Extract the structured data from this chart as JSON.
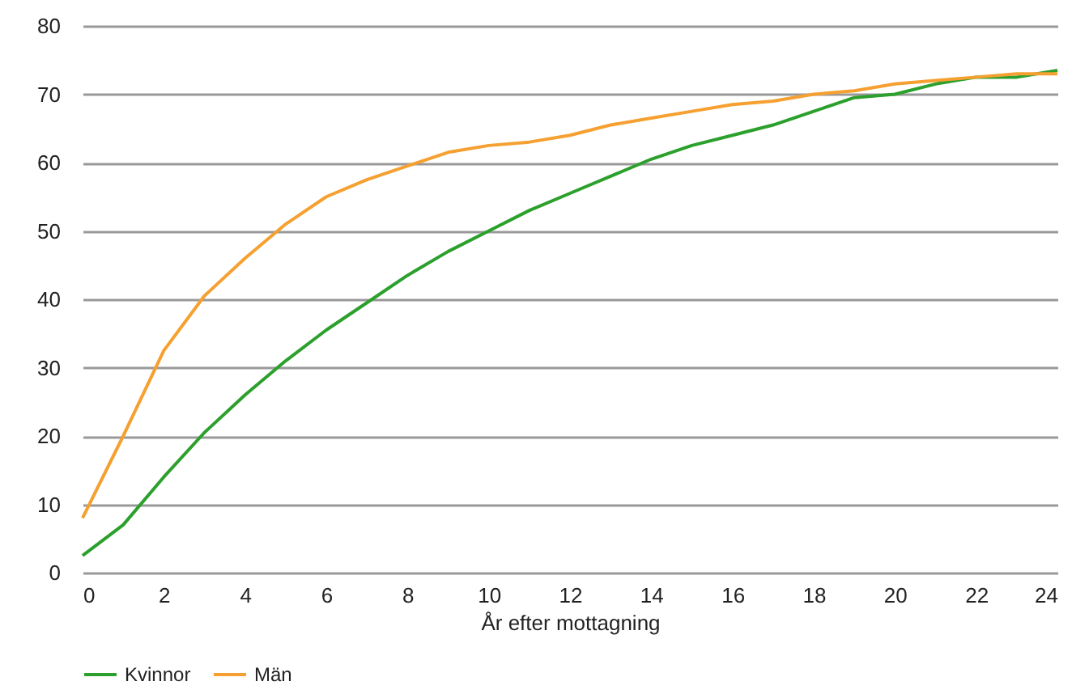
{
  "chart_data": {
    "type": "line",
    "xlabel": "År efter mottagning",
    "x": [
      0,
      1,
      2,
      3,
      4,
      5,
      6,
      7,
      8,
      9,
      10,
      11,
      12,
      13,
      14,
      15,
      16,
      17,
      18,
      19,
      20,
      21,
      22,
      23,
      24
    ],
    "series": [
      {
        "name": "Kvinnor",
        "color": "#2ca02c",
        "values": [
          2.5,
          7,
          14,
          20.5,
          26,
          31,
          35.5,
          39.5,
          43.5,
          47,
          50,
          53,
          55.5,
          58,
          60.5,
          62.5,
          64,
          65.5,
          67.5,
          69.5,
          70,
          71.5,
          72.5,
          72.5,
          73.5
        ]
      },
      {
        "name": "Män",
        "color": "#f5a030",
        "values": [
          8,
          20,
          32.5,
          40.5,
          46,
          51,
          55,
          57.5,
          59.5,
          61.5,
          62.5,
          63,
          64,
          65.5,
          66.5,
          67.5,
          68.5,
          69,
          70,
          70.5,
          71.5,
          72,
          72.5,
          73,
          73
        ]
      }
    ],
    "xlim": [
      0,
      24
    ],
    "xticks": [
      0,
      2,
      4,
      6,
      8,
      10,
      12,
      14,
      16,
      18,
      20,
      22,
      24
    ],
    "ylim": [
      0,
      80
    ],
    "yticks": [
      0,
      10,
      20,
      30,
      40,
      50,
      60,
      70,
      80
    ],
    "grid": "y",
    "legend": "bottom",
    "marker": "none",
    "line_style": "solid"
  }
}
